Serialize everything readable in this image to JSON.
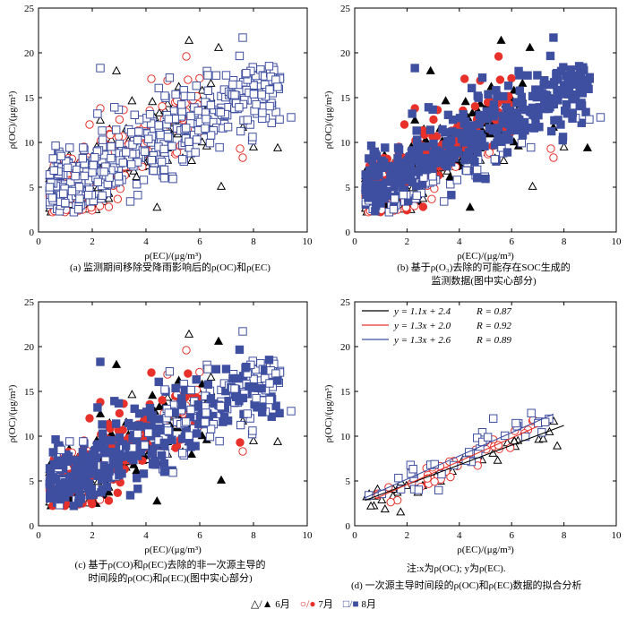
{
  "panels": [
    {
      "id": "a",
      "xlabel": "ρ(EC)/(μg/m³)",
      "ylabel": "ρ(OC)/(μg/m³)",
      "xlim": [
        0,
        10
      ],
      "ylim": [
        0,
        25
      ],
      "xticks": [
        "0",
        "2",
        "4",
        "6",
        "8",
        "10"
      ],
      "yticks": [
        "0",
        "5",
        "10",
        "15",
        "20",
        "25"
      ],
      "caption": [
        "(a)  监测期间移除受降雨影响后的ρ(OC)和ρ(EC)"
      ]
    },
    {
      "id": "b",
      "xlabel": "ρ(EC)/(μg/m³)",
      "ylabel": "ρ(OC)/(μg/m³)",
      "xlim": [
        0,
        10
      ],
      "ylim": [
        0,
        25
      ],
      "xticks": [
        "0",
        "2",
        "4",
        "6",
        "8",
        "10"
      ],
      "yticks": [
        "0",
        "5",
        "10",
        "15",
        "20",
        "25"
      ],
      "caption": [
        "(b)  基于ρ(O₃)去除的可能存在SOC生成的",
        "监测数据(图中实心部分)"
      ]
    },
    {
      "id": "c",
      "xlabel": "ρ(EC)/(μg/m³)",
      "ylabel": "ρ(OC)/(μg/m³)",
      "xlim": [
        0,
        10
      ],
      "ylim": [
        0,
        25
      ],
      "xticks": [
        "0",
        "2",
        "4",
        "6",
        "8",
        "10"
      ],
      "yticks": [
        "0",
        "5",
        "10",
        "15",
        "20",
        "25"
      ],
      "caption": [
        "(c)  基于ρ(CO)和ρ(EC)去除的非一次源主导的",
        "时间段的ρ(OC)和ρ(EC)(图中实心部分)"
      ]
    },
    {
      "id": "d",
      "xlabel": "ρ(EC)/(μg/m³)",
      "ylabel": "ρ(OC)/(μg/m³)",
      "xlim": [
        0,
        10
      ],
      "ylim": [
        0,
        25
      ],
      "xticks": [
        "0",
        "2",
        "4",
        "6",
        "8",
        "10"
      ],
      "yticks": [
        "0",
        "5",
        "10",
        "15",
        "20",
        "25"
      ],
      "note": "注:x为ρ(OC); y为ρ(EC).",
      "caption": [
        "(d)  一次源主导时间段的ρ(OC)和ρ(EC)数据的拟合分析"
      ],
      "fits": [
        {
          "label": "y = 1.1x + 2.4",
          "r": "R = 0.87",
          "color": "#000000",
          "slope": 1.1,
          "intercept": 2.4,
          "x_range": [
            0.4,
            8.0
          ]
        },
        {
          "label": "y = 1.3x + 2.0",
          "r": "R = 0.92",
          "color": "#e8312a",
          "slope": 1.3,
          "intercept": 2.0,
          "x_range": [
            0.8,
            7.0
          ]
        },
        {
          "label": "y = 1.3x + 2.6",
          "r": "R = 0.89",
          "color": "#3f4fa0",
          "slope": 1.3,
          "intercept": 2.6,
          "x_range": [
            0.4,
            7.6
          ]
        }
      ]
    }
  ],
  "legend": [
    {
      "symbol": "triangle",
      "label": "6月",
      "color": "#000000"
    },
    {
      "symbol": "circle",
      "label": "7月",
      "color": "#e8312a"
    },
    {
      "symbol": "square",
      "label": "8月",
      "color": "#3f4fa0"
    }
  ],
  "chart_data": {
    "type": "scatter",
    "series": [
      {
        "name": "6月",
        "marker": "triangle",
        "color": "#000000",
        "outliers": [
          [
            5.6,
            21.4
          ],
          [
            6.7,
            20.6
          ],
          [
            2.9,
            18.0
          ],
          [
            6.8,
            5.1
          ],
          [
            8.9,
            9.4
          ],
          [
            8.0,
            9.5
          ],
          [
            7.6,
            11.7
          ],
          [
            2.3,
            12.5
          ]
        ]
      },
      {
        "name": "7月",
        "marker": "circle",
        "color": "#e8312a",
        "outliers": [
          [
            5.5,
            19.6
          ],
          [
            4.2,
            17.1
          ],
          [
            4.8,
            16.9
          ],
          [
            7.5,
            9.3
          ],
          [
            7.6,
            8.3
          ],
          [
            2.3,
            13.8
          ],
          [
            1.9,
            12.0
          ]
        ]
      },
      {
        "name": "8月",
        "marker": "square",
        "color": "#3f4fa0",
        "outliers": [
          [
            7.6,
            21.7
          ],
          [
            6.3,
            17.5
          ],
          [
            2.3,
            18.3
          ],
          [
            9.4,
            12.8
          ],
          [
            8.9,
            16.2
          ],
          [
            8.6,
            15.9
          ],
          [
            7.3,
            15.3
          ],
          [
            4.7,
            15.2
          ]
        ]
      }
    ],
    "xlabel": "ρ(EC)/(μg/m³)",
    "ylabel": "ρ(OC)/(μg/m³)",
    "xlim": [
      0,
      10
    ],
    "ylim": [
      0,
      25
    ]
  }
}
